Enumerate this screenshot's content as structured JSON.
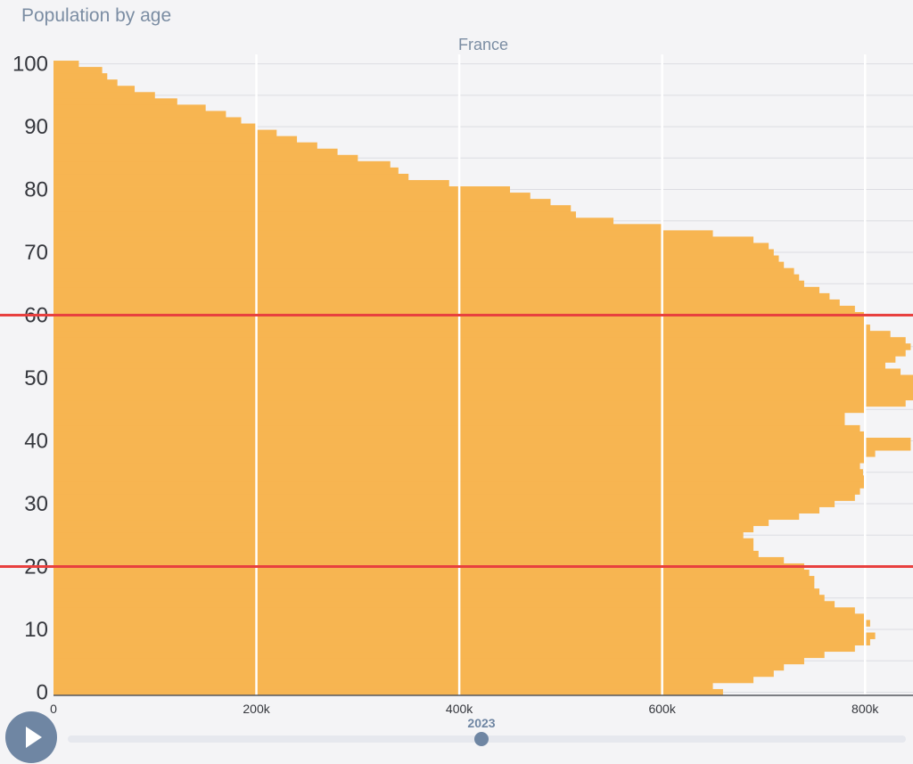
{
  "page_title": "Population by age",
  "player": {
    "year": "2023",
    "slider_value": 2023
  },
  "colors": {
    "bar": "#f7b551",
    "grid": "#ffffff",
    "reference_line": "#e8403f",
    "text": "#7b8da3",
    "axis_text": "#35373d"
  },
  "chart_data": {
    "type": "bar",
    "orientation": "horizontal",
    "title": "France",
    "xlim": [
      0,
      900000
    ],
    "ylim": [
      0,
      101
    ],
    "x_ticks": [
      0,
      200000,
      400000,
      600000,
      800000
    ],
    "x_tick_labels": [
      "0",
      "200k",
      "400k",
      "600k",
      "800k"
    ],
    "y_ticks": [
      0,
      10,
      20,
      30,
      40,
      50,
      60,
      70,
      80,
      90,
      100
    ],
    "y_tick_labels": [
      "0",
      "10",
      "20",
      "30",
      "40",
      "50",
      "60",
      "70",
      "80",
      "90",
      "100"
    ],
    "reference_lines": [
      20,
      60
    ],
    "ages": [
      0,
      1,
      2,
      3,
      4,
      5,
      6,
      7,
      8,
      9,
      10,
      11,
      12,
      13,
      14,
      15,
      16,
      17,
      18,
      19,
      20,
      21,
      22,
      23,
      24,
      25,
      26,
      27,
      28,
      29,
      30,
      31,
      32,
      33,
      34,
      35,
      36,
      37,
      38,
      39,
      40,
      41,
      42,
      43,
      44,
      45,
      46,
      47,
      48,
      49,
      50,
      51,
      52,
      53,
      54,
      55,
      56,
      57,
      58,
      59,
      60,
      61,
      62,
      63,
      64,
      65,
      66,
      67,
      68,
      69,
      70,
      71,
      72,
      73,
      74,
      75,
      76,
      77,
      78,
      79,
      80,
      81,
      82,
      83,
      84,
      85,
      86,
      87,
      88,
      89,
      90,
      91,
      92,
      93,
      94,
      95,
      96,
      97,
      98,
      99,
      100
    ],
    "values": [
      660000,
      650000,
      690000,
      710000,
      720000,
      740000,
      760000,
      790000,
      805000,
      810000,
      800000,
      805000,
      800000,
      790000,
      770000,
      760000,
      755000,
      750000,
      750000,
      745000,
      740000,
      720000,
      695000,
      690000,
      690000,
      680000,
      690000,
      705000,
      735000,
      755000,
      770000,
      790000,
      795000,
      800000,
      800000,
      798000,
      795000,
      800000,
      810000,
      845000,
      845000,
      800000,
      795000,
      780000,
      780000,
      800000,
      840000,
      890000,
      895000,
      850000,
      850000,
      835000,
      820000,
      830000,
      840000,
      845000,
      840000,
      825000,
      805000,
      800000,
      800000,
      790000,
      775000,
      765000,
      755000,
      740000,
      735000,
      730000,
      720000,
      715000,
      710000,
      705000,
      690000,
      650000,
      600000,
      552000,
      515000,
      510000,
      490000,
      470000,
      450000,
      390000,
      350000,
      340000,
      332000,
      300000,
      280000,
      260000,
      240000,
      220000,
      200000,
      185000,
      170000,
      150000,
      122000,
      100000,
      80000,
      63000,
      53000,
      48000,
      25000
    ],
    "x_axis_orientation": "bottom",
    "grid": true
  }
}
